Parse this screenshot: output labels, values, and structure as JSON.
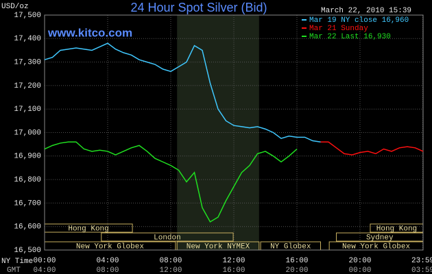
{
  "chart_data": {
    "type": "line",
    "title": "24 Hour Spot Silver (Bid)",
    "unit_label": "USD/oz",
    "timestamp": "March 22, 2010 15:39",
    "watermark": "www.kitco.com",
    "x_row_label": "NY Time",
    "x2_row_label": "GMT",
    "x": [
      0,
      0.5,
      1,
      1.5,
      2,
      2.5,
      3,
      3.5,
      4,
      4.5,
      5,
      5.5,
      6,
      6.5,
      7,
      7.5,
      8,
      8.5,
      9,
      9.5,
      10,
      10.5,
      11,
      11.5,
      12,
      12.5,
      13,
      13.5,
      14,
      14.5,
      15,
      15.5,
      16,
      16.5,
      17,
      17.5,
      18,
      18.5,
      19,
      19.5,
      20,
      20.5,
      21,
      21.5,
      22,
      22.5,
      23,
      23.5,
      24
    ],
    "series": [
      {
        "name": "Mar 19 NY close 16,960",
        "color": "#40c8ff",
        "values": [
          17.31,
          17.32,
          17.35,
          17.355,
          17.36,
          17.355,
          17.35,
          17.365,
          17.38,
          17.355,
          17.34,
          17.33,
          17.31,
          17.3,
          17.29,
          17.27,
          17.26,
          17.28,
          17.3,
          17.37,
          17.35,
          17.21,
          17.1,
          17.05,
          17.03,
          17.025,
          17.02,
          17.025,
          17.015,
          17.0,
          16.975,
          16.985,
          16.98,
          16.98,
          16.965,
          16.96,
          null,
          null,
          null,
          null,
          null,
          null,
          null,
          null,
          null,
          null,
          null,
          null,
          null
        ]
      },
      {
        "name": "Mar 21 Sunday",
        "color": "#ff1010",
        "values": [
          null,
          null,
          null,
          null,
          null,
          null,
          null,
          null,
          null,
          null,
          null,
          null,
          null,
          null,
          null,
          null,
          null,
          null,
          null,
          null,
          null,
          null,
          null,
          null,
          null,
          null,
          null,
          null,
          null,
          null,
          null,
          null,
          null,
          null,
          null,
          16.96,
          16.96,
          16.935,
          16.91,
          16.905,
          16.915,
          16.92,
          16.91,
          16.93,
          16.92,
          16.935,
          16.94,
          16.935,
          16.92
        ]
      },
      {
        "name": "Mar 22 Last 16,930",
        "color": "#20e020",
        "values": [
          16.93,
          16.945,
          16.955,
          16.96,
          16.96,
          16.93,
          16.92,
          16.925,
          16.92,
          16.905,
          16.92,
          16.935,
          16.945,
          16.92,
          16.89,
          16.875,
          16.86,
          16.84,
          16.79,
          16.83,
          16.68,
          16.62,
          16.64,
          16.71,
          16.77,
          16.83,
          16.86,
          16.91,
          16.92,
          16.9,
          16.875,
          16.9,
          16.93,
          null,
          null,
          null,
          null,
          null,
          null,
          null,
          null,
          null,
          null,
          null,
          null,
          null,
          null,
          null,
          null
        ]
      }
    ],
    "xlim": [
      0,
      24
    ],
    "xticks": [
      {
        "value": 0,
        "label": "00:00"
      },
      {
        "value": 4,
        "label": "04:00"
      },
      {
        "value": 8,
        "label": "08:00"
      },
      {
        "value": 12,
        "label": "12:00"
      },
      {
        "value": 16,
        "label": "16:00"
      },
      {
        "value": 20,
        "label": "20:00"
      },
      {
        "value": 23.98,
        "label": "23:59"
      }
    ],
    "x2ticks": [
      {
        "value": 0,
        "label": "04:00"
      },
      {
        "value": 4,
        "label": "08:00"
      },
      {
        "value": 8,
        "label": "12:00"
      },
      {
        "value": 12,
        "label": "16:00"
      },
      {
        "value": 16,
        "label": "20:00"
      },
      {
        "value": 20,
        "label": "00:00"
      },
      {
        "value": 23.98,
        "label": "03:59"
      }
    ],
    "ylim": [
      16.5,
      17.5
    ],
    "yticks": [
      {
        "value": 16.5,
        "label": "16,500"
      },
      {
        "value": 16.6,
        "label": "16,600"
      },
      {
        "value": 16.7,
        "label": "16,700"
      },
      {
        "value": 16.8,
        "label": "16,800"
      },
      {
        "value": 16.9,
        "label": "16,900"
      },
      {
        "value": 17.0,
        "label": "17,000"
      },
      {
        "value": 17.1,
        "label": "17,100"
      },
      {
        "value": 17.2,
        "label": "17,200"
      },
      {
        "value": 17.3,
        "label": "17,300"
      },
      {
        "value": 17.4,
        "label": "17,400"
      },
      {
        "value": 17.5,
        "label": "17,500"
      }
    ],
    "grid": true,
    "highlight": {
      "xlim": [
        8.4,
        13.6
      ],
      "color": "#1c2418"
    },
    "sessions": [
      {
        "name": "Hong Kong",
        "row": 0,
        "xlim": [
          0,
          5.57
        ]
      },
      {
        "name": "London",
        "row": 1,
        "xlim": [
          3.6,
          11.96
        ]
      },
      {
        "name": "New York Globex",
        "row": 2,
        "xlim": [
          0,
          8.3
        ]
      },
      {
        "name": "New York NYMEX",
        "row": 2,
        "xlim": [
          8.4,
          13.6
        ]
      },
      {
        "name": "NY Globex",
        "row": 2,
        "xlim": [
          13.7,
          17.5
        ]
      },
      {
        "name": "Hong Kong",
        "row": 0,
        "xlim": [
          20.65,
          24
        ]
      },
      {
        "name": "Sydney",
        "row": 1,
        "xlim": [
          18.5,
          24
        ]
      },
      {
        "name": "New York Globex",
        "row": 2,
        "xlim": [
          18.05,
          24
        ]
      }
    ]
  }
}
